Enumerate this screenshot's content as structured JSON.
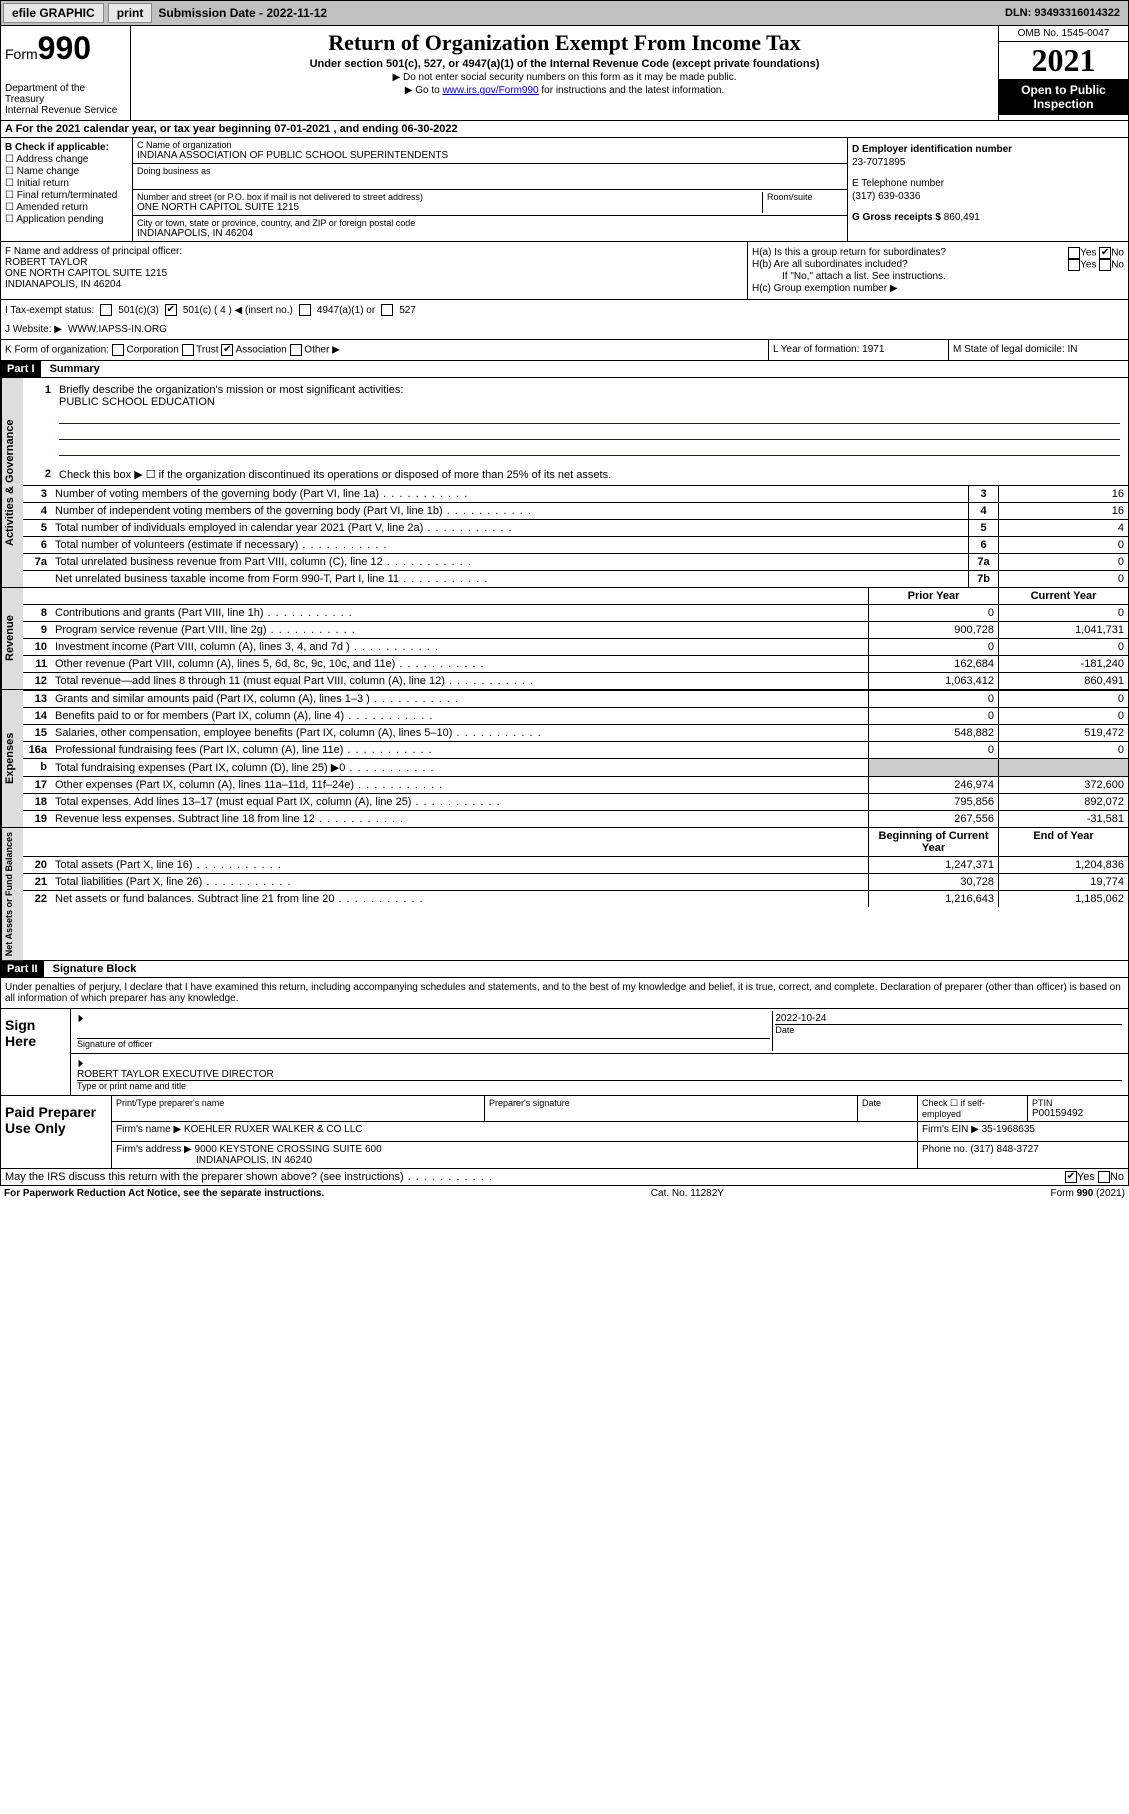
{
  "topbar": {
    "efile": "efile GRAPHIC",
    "print": "print",
    "sub_label": "Submission Date - 2022-11-12",
    "dln": "DLN: 93493316014322"
  },
  "header": {
    "form": "Form",
    "form_no": "990",
    "title": "Return of Organization Exempt From Income Tax",
    "subtitle": "Under section 501(c), 527, or 4947(a)(1) of the Internal Revenue Code (except private foundations)",
    "warn": "▶ Do not enter social security numbers on this form as it may be made public.",
    "goto_pre": "▶ Go to ",
    "goto_link": "www.irs.gov/Form990",
    "goto_post": " for instructions and the latest information.",
    "dept": "Department of the Treasury",
    "irs": "Internal Revenue Service",
    "omb": "OMB No. 1545-0047",
    "year": "2021",
    "opi": "Open to Public Inspection"
  },
  "line_a": "A For the 2021 calendar year, or tax year beginning 07-01-2021  , and ending 06-30-2022",
  "box_b": {
    "title": "B Check if applicable:",
    "items": [
      "Address change",
      "Name change",
      "Initial return",
      "Final return/terminated",
      "Amended return",
      "Application pending"
    ]
  },
  "box_c": {
    "name_lbl": "C Name of organization",
    "name": "INDIANA ASSOCIATION OF PUBLIC SCHOOL SUPERINTENDENTS",
    "dba_lbl": "Doing business as",
    "addr_lbl": "Number and street (or P.O. box if mail is not delivered to street address)",
    "suite_lbl": "Room/suite",
    "addr": "ONE NORTH CAPITOL SUITE 1215",
    "city_lbl": "City or town, state or province, country, and ZIP or foreign postal code",
    "city": "INDIANAPOLIS, IN  46204"
  },
  "box_d": {
    "lbl": "D Employer identification number",
    "val": "23-7071895"
  },
  "box_e": {
    "lbl": "E Telephone number",
    "val": "(317) 639-0336"
  },
  "box_g": {
    "lbl": "G Gross receipts $",
    "val": "860,491"
  },
  "box_f": {
    "lbl": "F Name and address of principal officer:",
    "name": "ROBERT TAYLOR",
    "addr1": "ONE NORTH CAPITOL SUITE 1215",
    "addr2": "INDIANAPOLIS, IN  46204"
  },
  "box_h": {
    "ha": "H(a)  Is this a group return for subordinates?",
    "hb": "H(b)  Are all subordinates included?",
    "hb_note": "If \"No,\" attach a list. See instructions.",
    "hc": "H(c)  Group exemption number ▶",
    "yes": "Yes",
    "no": "No"
  },
  "box_i": {
    "lbl": "I   Tax-exempt status:",
    "c3": "501(c)(3)",
    "c": "501(c) ( 4 ) ◀ (insert no.)",
    "a1": "4947(a)(1) or",
    "s527": "527"
  },
  "box_j": {
    "lbl": "J   Website: ▶",
    "val": "WWW.IAPSS-IN.ORG"
  },
  "box_k": {
    "lbl": "K Form of organization:",
    "corp": "Corporation",
    "trust": "Trust",
    "assoc": "Association",
    "other": "Other ▶"
  },
  "box_l": {
    "lbl": "L Year of formation:",
    "val": "1971"
  },
  "box_m": {
    "lbl": "M State of legal domicile:",
    "val": "IN"
  },
  "part1": {
    "hdr": "Part I",
    "title": "Summary"
  },
  "mission": {
    "lbl": "Briefly describe the organization's mission or most significant activities:",
    "text": "PUBLIC SCHOOL EDUCATION"
  },
  "line2": "Check this box ▶ ☐  if the organization discontinued its operations or disposed of more than 25% of its net assets.",
  "vtabs": {
    "ag": "Activities & Governance",
    "rev": "Revenue",
    "exp": "Expenses",
    "nab": "Net Assets or Fund Balances"
  },
  "rows_ag": [
    {
      "n": "3",
      "t": "Number of voting members of the governing body (Part VI, line 1a)",
      "k": "3",
      "v": "16"
    },
    {
      "n": "4",
      "t": "Number of independent voting members of the governing body (Part VI, line 1b)",
      "k": "4",
      "v": "16"
    },
    {
      "n": "5",
      "t": "Total number of individuals employed in calendar year 2021 (Part V, line 2a)",
      "k": "5",
      "v": "4"
    },
    {
      "n": "6",
      "t": "Total number of volunteers (estimate if necessary)",
      "k": "6",
      "v": "0"
    },
    {
      "n": "7a",
      "t": "Total unrelated business revenue from Part VIII, column (C), line 12",
      "k": "7a",
      "v": "0"
    },
    {
      "n": "",
      "t": "Net unrelated business taxable income from Form 990-T, Part I, line 11",
      "k": "7b",
      "v": "0"
    }
  ],
  "col_hdrs": {
    "prior": "Prior Year",
    "curr": "Current Year",
    "boy": "Beginning of Current Year",
    "eoy": "End of Year"
  },
  "rows_rev": [
    {
      "n": "8",
      "t": "Contributions and grants (Part VIII, line 1h)",
      "p": "0",
      "c": "0"
    },
    {
      "n": "9",
      "t": "Program service revenue (Part VIII, line 2g)",
      "p": "900,728",
      "c": "1,041,731"
    },
    {
      "n": "10",
      "t": "Investment income (Part VIII, column (A), lines 3, 4, and 7d )",
      "p": "0",
      "c": "0"
    },
    {
      "n": "11",
      "t": "Other revenue (Part VIII, column (A), lines 5, 6d, 8c, 9c, 10c, and 11e)",
      "p": "162,684",
      "c": "-181,240"
    },
    {
      "n": "12",
      "t": "Total revenue—add lines 8 through 11 (must equal Part VIII, column (A), line 12)",
      "p": "1,063,412",
      "c": "860,491"
    }
  ],
  "rows_exp": [
    {
      "n": "13",
      "t": "Grants and similar amounts paid (Part IX, column (A), lines 1–3 )",
      "p": "0",
      "c": "0"
    },
    {
      "n": "14",
      "t": "Benefits paid to or for members (Part IX, column (A), line 4)",
      "p": "0",
      "c": "0"
    },
    {
      "n": "15",
      "t": "Salaries, other compensation, employee benefits (Part IX, column (A), lines 5–10)",
      "p": "548,882",
      "c": "519,472"
    },
    {
      "n": "16a",
      "t": "Professional fundraising fees (Part IX, column (A), line 11e)",
      "p": "0",
      "c": "0"
    },
    {
      "n": "b",
      "t": "Total fundraising expenses (Part IX, column (D), line 25) ▶0",
      "p": "",
      "c": "",
      "gray": true
    },
    {
      "n": "17",
      "t": "Other expenses (Part IX, column (A), lines 11a–11d, 11f–24e)",
      "p": "246,974",
      "c": "372,600"
    },
    {
      "n": "18",
      "t": "Total expenses. Add lines 13–17 (must equal Part IX, column (A), line 25)",
      "p": "795,856",
      "c": "892,072"
    },
    {
      "n": "19",
      "t": "Revenue less expenses. Subtract line 18 from line 12",
      "p": "267,556",
      "c": "-31,581"
    }
  ],
  "rows_nab": [
    {
      "n": "20",
      "t": "Total assets (Part X, line 16)",
      "p": "1,247,371",
      "c": "1,204,836"
    },
    {
      "n": "21",
      "t": "Total liabilities (Part X, line 26)",
      "p": "30,728",
      "c": "19,774"
    },
    {
      "n": "22",
      "t": "Net assets or fund balances. Subtract line 21 from line 20",
      "p": "1,216,643",
      "c": "1,185,062"
    }
  ],
  "part2": {
    "hdr": "Part II",
    "title": "Signature Block"
  },
  "sig": {
    "decl": "Under penalties of perjury, I declare that I have examined this return, including accompanying schedules and statements, and to the best of my knowledge and belief, it is true, correct, and complete. Declaration of preparer (other than officer) is based on all information of which preparer has any knowledge.",
    "sign_here": "Sign Here",
    "sig_officer": "Signature of officer",
    "date_lbl": "Date",
    "date_val": "2022-10-24",
    "name": "ROBERT TAYLOR  EXECUTIVE DIRECTOR",
    "name_lbl": "Type or print name and title"
  },
  "paid": {
    "title": "Paid Preparer Use Only",
    "print_lbl": "Print/Type preparer's name",
    "sig_lbl": "Preparer's signature",
    "date_lbl": "Date",
    "check_lbl": "Check ☐ if self-employed",
    "ptin_lbl": "PTIN",
    "ptin": "P00159492",
    "firm_lbl": "Firm's name   ▶",
    "firm": "KOEHLER RUXER WALKER & CO LLC",
    "ein_lbl": "Firm's EIN ▶",
    "ein": "35-1968635",
    "addr_lbl": "Firm's address ▶",
    "addr1": "9000 KEYSTONE CROSSING SUITE 600",
    "addr2": "INDIANAPOLIS, IN  46240",
    "phone_lbl": "Phone no.",
    "phone": "(317) 848-3727"
  },
  "discuss": "May the IRS discuss this return with the preparer shown above? (see instructions)",
  "footer": {
    "pra": "For Paperwork Reduction Act Notice, see the separate instructions.",
    "cat": "Cat. No. 11282Y",
    "form": "Form 990 (2021)"
  }
}
